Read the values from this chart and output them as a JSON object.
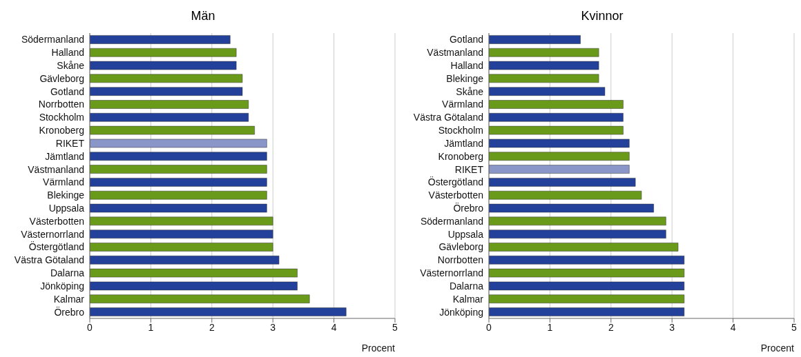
{
  "chart_data": [
    {
      "type": "bar",
      "title": "Män",
      "xlabel": "Procent",
      "orientation": "horizontal",
      "categories": [
        "Södermanland",
        "Halland",
        "Skåne",
        "Gävleborg",
        "Gotland",
        "Norrbotten",
        "Stockholm",
        "Kronoberg",
        "RIKET",
        "Jämtland",
        "Västmanland",
        "Värmland",
        "Blekinge",
        "Uppsala",
        "Västerbotten",
        "Västernorrland",
        "Östergötland",
        "Västra Götaland",
        "Dalarna",
        "Jönköping",
        "Kalmar",
        "Örebro"
      ],
      "values": [
        2.3,
        2.4,
        2.4,
        2.5,
        2.5,
        2.6,
        2.6,
        2.7,
        2.9,
        2.9,
        2.9,
        2.9,
        2.9,
        2.9,
        3.0,
        3.0,
        3.0,
        3.1,
        3.4,
        3.4,
        3.6,
        4.2
      ],
      "colors": [
        "#23409a",
        "#6a9a1a",
        "#23409a",
        "#6a9a1a",
        "#23409a",
        "#6a9a1a",
        "#23409a",
        "#6a9a1a",
        "#8a96c8",
        "#23409a",
        "#6a9a1a",
        "#23409a",
        "#6a9a1a",
        "#23409a",
        "#6a9a1a",
        "#23409a",
        "#6a9a1a",
        "#23409a",
        "#6a9a1a",
        "#23409a",
        "#6a9a1a",
        "#23409a"
      ],
      "xlim": [
        0,
        5
      ],
      "xticks": [
        0,
        1,
        2,
        3,
        4,
        5
      ],
      "grid": "x"
    },
    {
      "type": "bar",
      "title": "Kvinnor",
      "xlabel": "Procent",
      "orientation": "horizontal",
      "categories": [
        "Gotland",
        "Västmanland",
        "Halland",
        "Blekinge",
        "Skåne",
        "Värmland",
        "Västra Götaland",
        "Stockholm",
        "Jämtland",
        "Kronoberg",
        "RIKET",
        "Östergötland",
        "Västerbotten",
        "Örebro",
        "Södermanland",
        "Uppsala",
        "Gävleborg",
        "Norrbotten",
        "Västernorrland",
        "Dalarna",
        "Kalmar",
        "Jönköping"
      ],
      "values": [
        1.5,
        1.8,
        1.8,
        1.8,
        1.9,
        2.2,
        2.2,
        2.2,
        2.3,
        2.3,
        2.3,
        2.4,
        2.5,
        2.7,
        2.9,
        2.9,
        3.1,
        3.2,
        3.2,
        3.2,
        3.2,
        3.2
      ],
      "colors": [
        "#23409a",
        "#6a9a1a",
        "#23409a",
        "#6a9a1a",
        "#23409a",
        "#6a9a1a",
        "#23409a",
        "#6a9a1a",
        "#23409a",
        "#6a9a1a",
        "#8a96c8",
        "#23409a",
        "#6a9a1a",
        "#23409a",
        "#6a9a1a",
        "#23409a",
        "#6a9a1a",
        "#23409a",
        "#6a9a1a",
        "#23409a",
        "#6a9a1a",
        "#23409a"
      ],
      "xlim": [
        0,
        5
      ],
      "xticks": [
        0,
        1,
        2,
        3,
        4,
        5
      ],
      "grid": "x"
    }
  ]
}
